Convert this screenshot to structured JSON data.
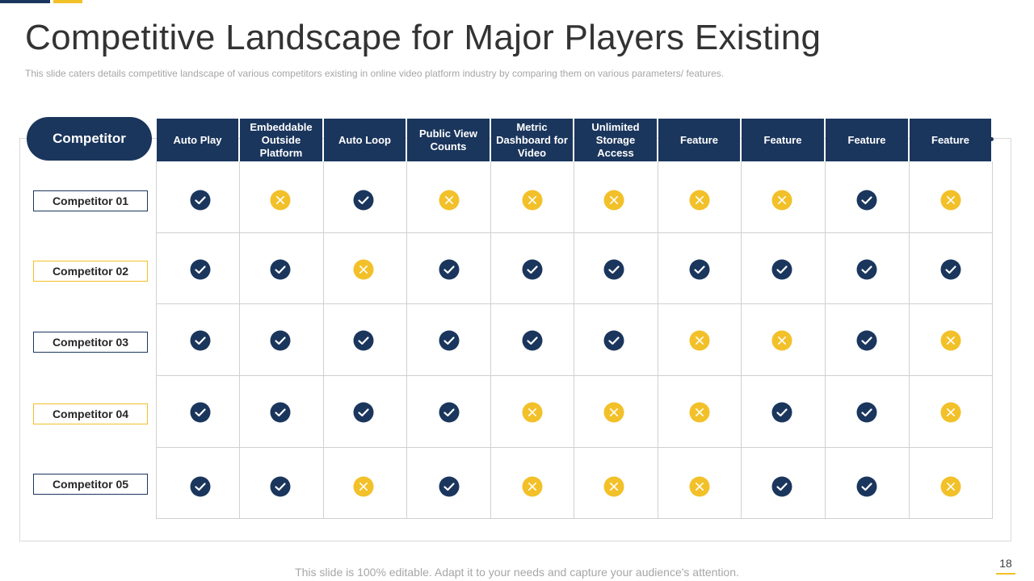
{
  "slide": {
    "title": "Competitive Landscape for Major Players Existing",
    "subtitle": "This slide caters details competitive landscape of various  competitors existing in online video platform industry by comparing them on various parameters/ features.",
    "footer": "This slide is 100% editable. Adapt it to your needs and capture your audience's attention.",
    "page_number": "18"
  },
  "colors": {
    "navy": "#1b365d",
    "gold": "#f2c029"
  },
  "table": {
    "corner_label": "Competitor",
    "columns": [
      "Auto Play",
      "Embeddable Outside Platform",
      "Auto Loop",
      "Public View Counts",
      "Metric Dashboard for Video",
      "Unlimited Storage Access",
      "Feature",
      "Feature",
      "Feature",
      "Feature"
    ],
    "rows": [
      {
        "label": "Competitor 01",
        "style": "navy",
        "marks": [
          "check",
          "cross",
          "check",
          "cross",
          "cross",
          "cross",
          "cross",
          "cross",
          "check",
          "cross"
        ]
      },
      {
        "label": "Competitor 02",
        "style": "gold",
        "marks": [
          "check",
          "check",
          "cross",
          "check",
          "check",
          "check",
          "check",
          "check",
          "check",
          "check"
        ]
      },
      {
        "label": "Competitor 03",
        "style": "navy",
        "marks": [
          "check",
          "check",
          "check",
          "check",
          "check",
          "check",
          "cross",
          "cross",
          "check",
          "cross"
        ]
      },
      {
        "label": "Competitor 04",
        "style": "gold",
        "marks": [
          "check",
          "check",
          "check",
          "check",
          "cross",
          "cross",
          "cross",
          "check",
          "check",
          "cross"
        ]
      },
      {
        "label": "Competitor 05",
        "style": "navy",
        "marks": [
          "check",
          "check",
          "cross",
          "check",
          "cross",
          "cross",
          "cross",
          "check",
          "check",
          "cross"
        ]
      }
    ],
    "icons": {
      "check": "check-circle-icon",
      "cross": "x-circle-icon"
    }
  }
}
